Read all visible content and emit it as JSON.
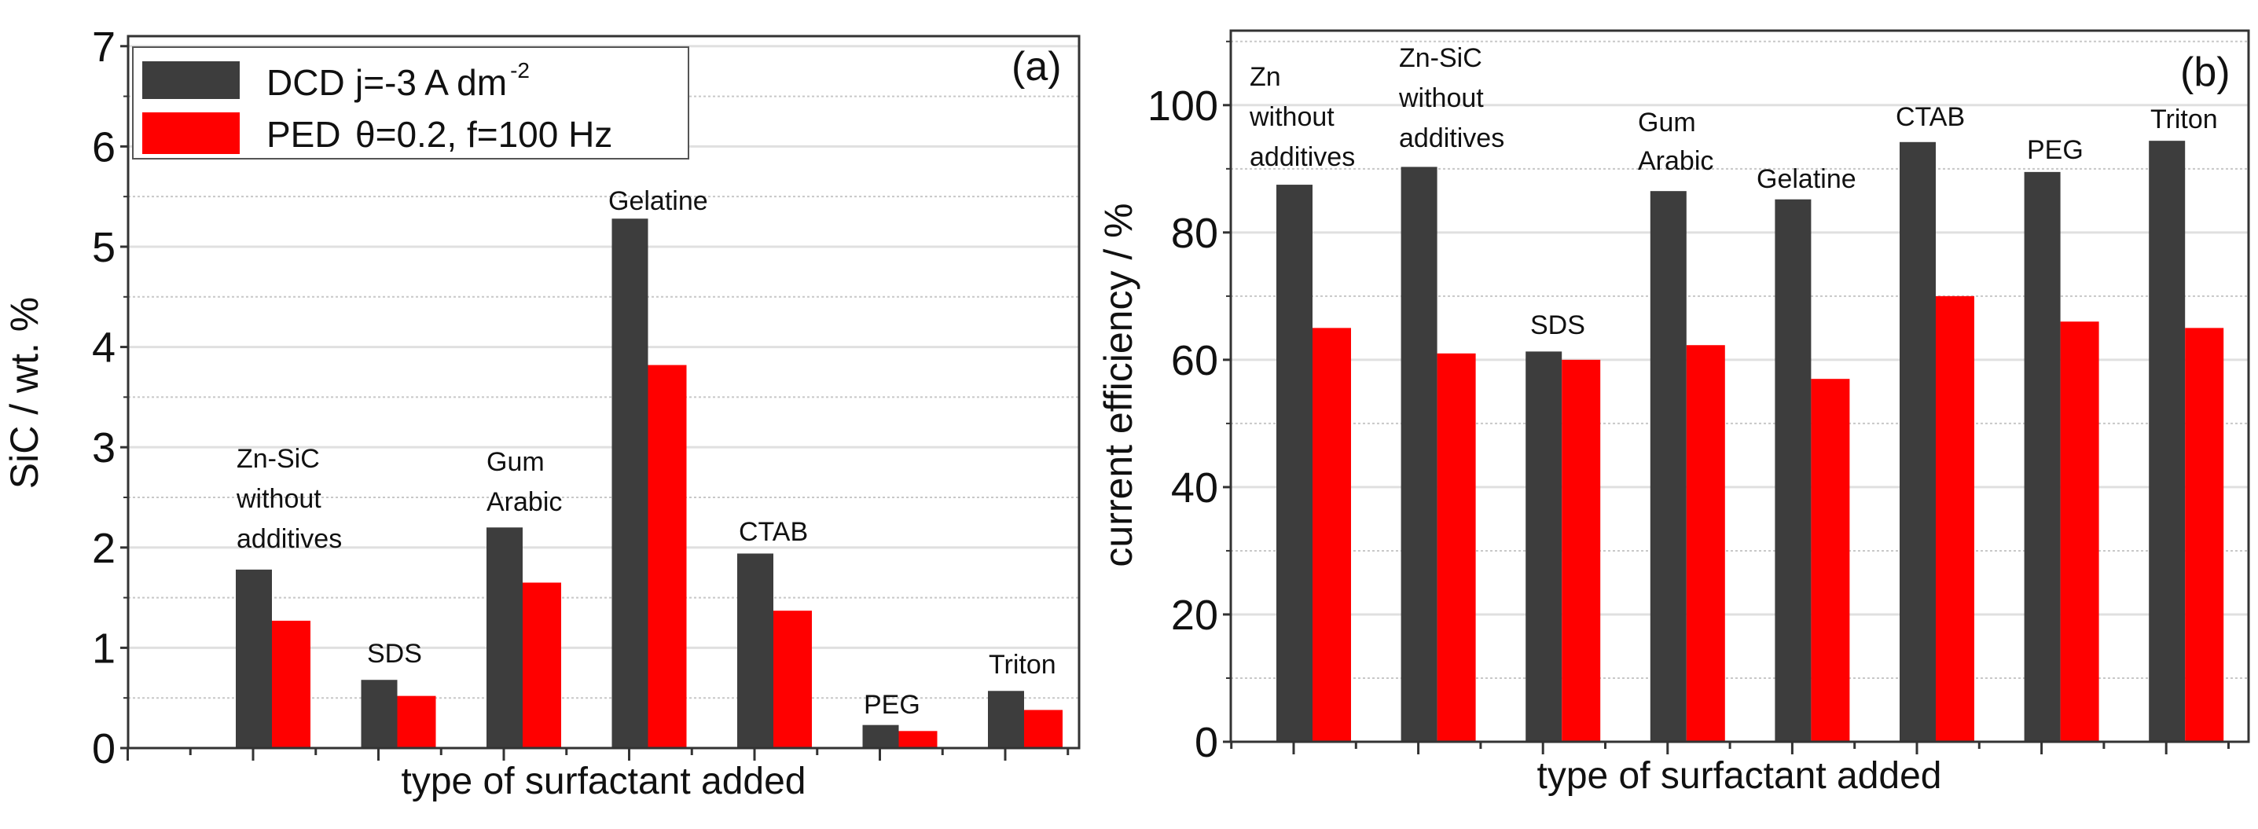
{
  "colors": {
    "dcd": "#3d3d3d",
    "ped": "#ff0000",
    "grid_major": "#e0e0e0",
    "grid_minor": "#c8c8c8",
    "axis": "#333333"
  },
  "chart_data": [
    {
      "type": "bar",
      "panel_label": "(a)",
      "xlabel": "type of surfactant added",
      "ylabel": "SiC / wt. %",
      "ylim": [
        0,
        7.1
      ],
      "yticks": [
        "0",
        "1",
        "2",
        "3",
        "4",
        "5",
        "6",
        "7"
      ],
      "grid": true,
      "legend_position": "top-left",
      "legend": [
        {
          "name": "DCD",
          "condition": "j=-3 A dm",
          "superscript": "-2"
        },
        {
          "name": "PED",
          "condition": "θ=0.2, f=100 Hz",
          "superscript": ""
        }
      ],
      "categories": [
        [
          "Zn-SiC",
          "without",
          "additives"
        ],
        [
          "SDS"
        ],
        [
          "Gum",
          "Arabic"
        ],
        [
          "Gelatine"
        ],
        [
          "CTAB"
        ],
        [
          "PEG"
        ],
        [
          "Triton"
        ]
      ],
      "series": [
        {
          "name": "DCD",
          "values": [
            1.78,
            0.68,
            2.2,
            5.28,
            1.94,
            0.23,
            0.57
          ]
        },
        {
          "name": "PED",
          "values": [
            1.27,
            0.52,
            1.65,
            3.82,
            1.37,
            0.17,
            0.38
          ]
        }
      ]
    },
    {
      "type": "bar",
      "panel_label": "(b)",
      "xlabel": "type of surfactant added",
      "ylabel": "current efficiency / %",
      "ylim": [
        0,
        111.7
      ],
      "yticks": [
        "0",
        "20",
        "40",
        "60",
        "80",
        "100"
      ],
      "grid": true,
      "categories": [
        [
          "Zn",
          "without",
          "additives"
        ],
        [
          "Zn-SiC",
          "without",
          "additives"
        ],
        [
          "SDS"
        ],
        [
          "Gum",
          "Arabic"
        ],
        [
          "Gelatine"
        ],
        [
          "CTAB"
        ],
        [
          "PEG"
        ],
        [
          "Triton"
        ]
      ],
      "series": [
        {
          "name": "DCD",
          "values": [
            87.5,
            90.3,
            61.3,
            86.5,
            85.2,
            94.2,
            89.5,
            94.4
          ]
        },
        {
          "name": "PED",
          "values": [
            65,
            61,
            60,
            62.3,
            57,
            70,
            66,
            65
          ]
        }
      ]
    }
  ]
}
